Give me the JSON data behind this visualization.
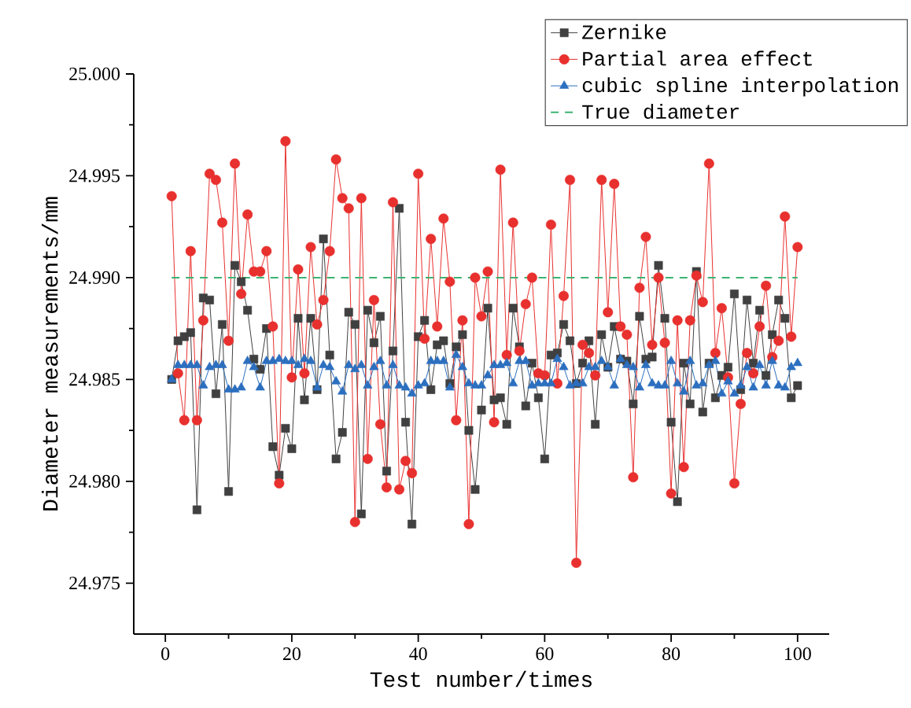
{
  "chart_data": {
    "type": "line",
    "xlabel": "Test number/times",
    "ylabel": "Diameter measurements/mm",
    "x": [
      1,
      2,
      3,
      4,
      5,
      6,
      7,
      8,
      9,
      10,
      11,
      12,
      13,
      14,
      15,
      16,
      17,
      18,
      19,
      20,
      21,
      22,
      23,
      24,
      25,
      26,
      27,
      28,
      29,
      30,
      31,
      32,
      33,
      34,
      35,
      36,
      37,
      38,
      39,
      40,
      41,
      42,
      43,
      44,
      45,
      46,
      47,
      48,
      49,
      50,
      51,
      52,
      53,
      54,
      55,
      56,
      57,
      58,
      59,
      60,
      61,
      62,
      63,
      64,
      65,
      66,
      67,
      68,
      69,
      70,
      71,
      72,
      73,
      74,
      75,
      76,
      77,
      78,
      79,
      80,
      81,
      82,
      83,
      84,
      85,
      86,
      87,
      88,
      89,
      90,
      91,
      92,
      93,
      94,
      95,
      96,
      97,
      98,
      99,
      100
    ],
    "series": [
      {
        "name": "Zernike",
        "color": "#404040",
        "marker": "square",
        "values": [
          24.985,
          24.9869,
          24.9871,
          24.9873,
          24.9786,
          24.989,
          24.9889,
          24.9843,
          24.9877,
          24.9795,
          24.9906,
          24.9898,
          24.9884,
          24.986,
          24.9855,
          24.9875,
          24.9817,
          24.9803,
          24.9826,
          24.9816,
          24.988,
          24.984,
          24.988,
          24.9845,
          24.9919,
          24.9862,
          24.9811,
          24.9824,
          24.9883,
          24.9877,
          24.9784,
          24.9884,
          24.9868,
          24.9881,
          24.9805,
          24.9864,
          24.9934,
          24.9829,
          24.9779,
          24.9871,
          24.9879,
          24.9845,
          24.9867,
          24.9869,
          24.9848,
          24.9866,
          24.9872,
          24.9825,
          24.9796,
          24.9835,
          24.9885,
          24.984,
          24.9841,
          24.9828,
          24.9885,
          24.9866,
          24.9837,
          24.9858,
          24.9841,
          24.9811,
          24.9862,
          24.9863,
          24.9877,
          24.9869,
          24.9848,
          24.9858,
          24.9869,
          24.9828,
          24.9872,
          24.9856,
          24.9876,
          24.986,
          24.9859,
          24.9838,
          24.9881,
          24.986,
          24.9861,
          24.9906,
          24.988,
          24.9829,
          24.979,
          24.9858,
          24.9838,
          24.9903,
          24.9834,
          24.9858,
          24.9841,
          24.9852,
          24.9856,
          24.9892,
          24.9845,
          24.9889,
          24.9858,
          24.9884,
          24.9852,
          24.9872,
          24.9889,
          24.988,
          24.9841,
          24.9847
        ]
      },
      {
        "name": "Partial area effect",
        "color": "#e8302e",
        "marker": "circle",
        "values": [
          24.994,
          24.9853,
          24.983,
          24.9913,
          24.983,
          24.9879,
          24.9951,
          24.9948,
          24.9927,
          24.9869,
          24.9956,
          24.9892,
          24.9931,
          24.9903,
          24.9903,
          24.9913,
          24.9876,
          24.9799,
          24.9967,
          24.9851,
          24.9904,
          24.9853,
          24.9915,
          24.9877,
          24.9889,
          24.9913,
          24.9958,
          24.9939,
          24.9934,
          24.978,
          24.9939,
          24.9811,
          24.9889,
          24.9828,
          24.9797,
          24.9937,
          24.9796,
          24.981,
          24.9804,
          24.9951,
          24.987,
          24.9919,
          24.9876,
          24.9929,
          24.9898,
          24.983,
          24.9879,
          24.9779,
          24.99,
          24.9881,
          24.9903,
          24.9829,
          24.9953,
          24.9862,
          24.9927,
          24.9864,
          24.9887,
          24.99,
          24.9853,
          24.9852,
          24.9926,
          24.9848,
          24.9891,
          24.9948,
          24.976,
          24.9867,
          24.9863,
          24.9852,
          24.9948,
          24.9883,
          24.9946,
          24.9876,
          24.9872,
          24.9802,
          24.9895,
          24.992,
          24.9867,
          24.99,
          24.9868,
          24.9794,
          24.9879,
          24.9807,
          24.9879,
          24.9901,
          24.9888,
          24.9956,
          24.9863,
          24.9885,
          24.9851,
          24.9799,
          24.9838,
          24.9863,
          24.9853,
          24.9876,
          24.9896,
          24.9861,
          24.9869,
          24.993,
          24.9871,
          24.9915
        ]
      },
      {
        "name": "cubic spline interpolation",
        "color": "#2c6fbf",
        "marker": "triangle",
        "values": [
          24.985,
          24.9857,
          24.9857,
          24.9857,
          24.9857,
          24.9847,
          24.9856,
          24.9857,
          24.9857,
          24.9845,
          24.9845,
          24.9846,
          24.9859,
          24.9856,
          24.9846,
          24.9859,
          24.9859,
          24.986,
          24.9859,
          24.9859,
          24.9857,
          24.986,
          24.9859,
          24.9846,
          24.9857,
          24.9856,
          24.9849,
          24.9844,
          24.9857,
          24.9855,
          24.9857,
          24.9847,
          24.9856,
          24.9859,
          24.9847,
          24.9857,
          24.9847,
          24.9846,
          24.9843,
          24.9847,
          24.9848,
          24.9859,
          24.9859,
          24.9859,
          24.9846,
          24.9862,
          24.9856,
          24.9848,
          24.9847,
          24.9847,
          24.9852,
          24.9857,
          24.9857,
          24.9858,
          24.9848,
          24.9859,
          24.9859,
          24.9847,
          24.9848,
          24.9848,
          24.9848,
          24.986,
          24.9856,
          24.9847,
          24.9848,
          24.9848,
          24.9856,
          24.9856,
          24.9859,
          24.9856,
          24.9847,
          24.986,
          24.9857,
          24.9856,
          24.9846,
          24.9857,
          24.9848,
          24.9847,
          24.9847,
          24.9859,
          24.9848,
          24.9844,
          24.9859,
          24.9847,
          24.9848,
          24.9857,
          24.9859,
          24.9843,
          24.9849,
          24.9843,
          24.9847,
          24.9856,
          24.9846,
          24.9857,
          24.9847,
          24.9859,
          24.9847,
          24.9846,
          24.9856,
          24.9858
        ]
      }
    ],
    "ref_lines": [
      {
        "axis": "y",
        "value": 24.99,
        "label": "True diameter",
        "color": "#3cb371",
        "line_style": "dashed"
      }
    ],
    "xlim": [
      -5,
      105
    ],
    "xticks": [
      0,
      20,
      40,
      60,
      80,
      100
    ],
    "ylim": [
      24.9725,
      25.0
    ],
    "yticks": [
      {
        "value": 24.975,
        "label": "24.975"
      },
      {
        "value": 24.98,
        "label": "24.980"
      },
      {
        "value": 24.985,
        "label": "24.985"
      },
      {
        "value": 24.99,
        "label": "24.990"
      },
      {
        "value": 24.995,
        "label": "24.995"
      },
      {
        "value": 25.0,
        "label": "25.000"
      }
    ],
    "legend": "top right",
    "line_style": "solid"
  }
}
